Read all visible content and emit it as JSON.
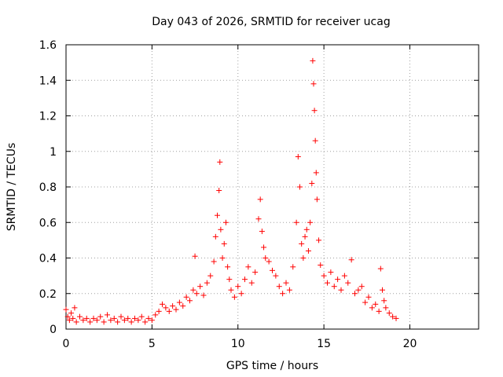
{
  "chart_data": {
    "type": "scatter",
    "title": "Day 043 of 2026, SRMTID for receiver ucag",
    "xlabel": "GPS time / hours",
    "ylabel": "SRMTID / TECUs",
    "xlim": [
      0,
      24
    ],
    "ylim": [
      0,
      1.6
    ],
    "xticks": [
      0,
      5,
      10,
      15,
      20
    ],
    "xtick_labels": [
      "0",
      "5",
      "10",
      "15",
      "20"
    ],
    "yticks": [
      0,
      0.2,
      0.4,
      0.6,
      0.8,
      1,
      1.2,
      1.4,
      1.6
    ],
    "ytick_labels": [
      "0",
      "0.2",
      "0.4",
      "0.6",
      "0.8",
      "1",
      "1.2",
      "1.4",
      "1.6"
    ],
    "grid": true,
    "marker": "+",
    "color": "#ff0000",
    "series": [
      {
        "name": "SRMTID",
        "x": [
          0.0,
          0.1,
          0.2,
          0.3,
          0.4,
          0.5,
          0.6,
          0.8,
          1.0,
          1.2,
          1.4,
          1.6,
          1.8,
          2.0,
          2.2,
          2.4,
          2.6,
          2.8,
          3.0,
          3.2,
          3.4,
          3.6,
          3.8,
          4.0,
          4.2,
          4.4,
          4.6,
          4.8,
          5.0,
          5.2,
          5.4,
          5.6,
          5.8,
          6.0,
          6.2,
          6.4,
          6.6,
          6.8,
          7.0,
          7.2,
          7.4,
          7.5,
          7.6,
          7.8,
          8.0,
          8.2,
          8.4,
          8.6,
          8.7,
          8.8,
          8.9,
          8.95,
          9.0,
          9.1,
          9.2,
          9.3,
          9.4,
          9.5,
          9.6,
          9.8,
          10.0,
          10.2,
          10.4,
          10.6,
          10.8,
          11.0,
          11.2,
          11.3,
          11.4,
          11.5,
          11.6,
          11.8,
          12.0,
          12.2,
          12.4,
          12.6,
          12.8,
          13.0,
          13.2,
          13.4,
          13.5,
          13.6,
          13.7,
          13.8,
          13.9,
          14.0,
          14.1,
          14.2,
          14.3,
          14.35,
          14.4,
          14.45,
          14.5,
          14.55,
          14.6,
          14.7,
          14.8,
          15.0,
          15.2,
          15.4,
          15.6,
          15.8,
          16.0,
          16.2,
          16.4,
          16.6,
          16.8,
          17.0,
          17.2,
          17.4,
          17.6,
          17.8,
          18.0,
          18.2,
          18.3,
          18.4,
          18.5,
          18.6,
          18.8,
          19.0,
          19.2
        ],
        "y": [
          0.11,
          0.07,
          0.05,
          0.09,
          0.06,
          0.12,
          0.04,
          0.07,
          0.05,
          0.06,
          0.04,
          0.06,
          0.05,
          0.07,
          0.04,
          0.08,
          0.05,
          0.06,
          0.04,
          0.07,
          0.05,
          0.06,
          0.04,
          0.06,
          0.05,
          0.07,
          0.04,
          0.06,
          0.05,
          0.08,
          0.1,
          0.14,
          0.12,
          0.1,
          0.13,
          0.11,
          0.15,
          0.13,
          0.18,
          0.16,
          0.22,
          0.41,
          0.2,
          0.24,
          0.19,
          0.26,
          0.3,
          0.38,
          0.52,
          0.64,
          0.78,
          0.94,
          0.56,
          0.4,
          0.48,
          0.6,
          0.35,
          0.28,
          0.22,
          0.18,
          0.24,
          0.2,
          0.28,
          0.35,
          0.26,
          0.32,
          0.62,
          0.73,
          0.55,
          0.46,
          0.4,
          0.38,
          0.33,
          0.3,
          0.24,
          0.2,
          0.26,
          0.22,
          0.35,
          0.6,
          0.97,
          0.8,
          0.48,
          0.4,
          0.52,
          0.56,
          0.44,
          0.6,
          0.82,
          1.51,
          1.38,
          1.23,
          1.06,
          0.88,
          0.73,
          0.5,
          0.36,
          0.3,
          0.26,
          0.32,
          0.24,
          0.28,
          0.22,
          0.3,
          0.26,
          0.39,
          0.2,
          0.22,
          0.24,
          0.15,
          0.18,
          0.12,
          0.14,
          0.1,
          0.34,
          0.22,
          0.16,
          0.12,
          0.09,
          0.07,
          0.06
        ]
      }
    ]
  }
}
